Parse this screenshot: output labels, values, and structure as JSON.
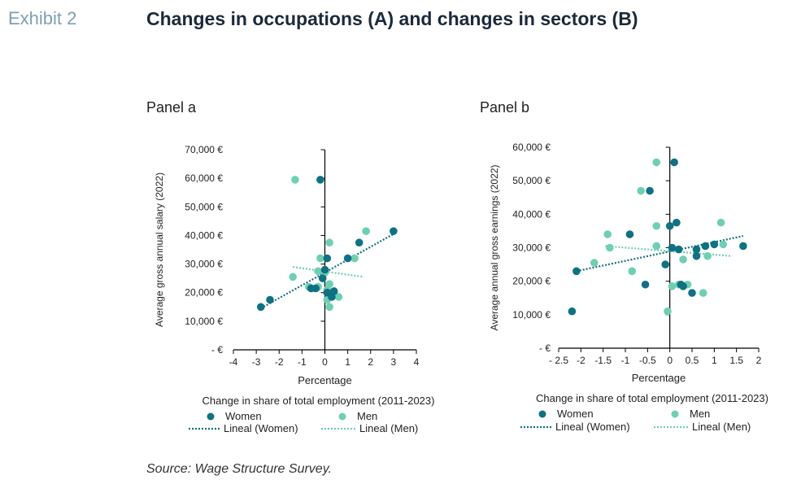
{
  "header": {
    "exhibit": "Exhibit 2",
    "title": "Changes in occupations (A) and changes in sectors (B)"
  },
  "source": "Source: Wage Structure Survey.",
  "colors": {
    "women": "#0f7182",
    "men": "#6fcfb3",
    "axis": "#000000"
  },
  "chart_data": [
    {
      "type": "scatter",
      "panel": "Panel a",
      "xlabel": "Percentage",
      "ylabel": "Average gross annual salary (2022)",
      "subtitle": "Change in share of total employment (2011-2023)",
      "xlim": [
        -4,
        4
      ],
      "ylim": [
        0,
        70000
      ],
      "xticks": [
        "-4",
        "-3",
        "-2",
        "-1",
        "0",
        "1",
        "2",
        "3",
        "4"
      ],
      "yticks": [
        "- €",
        "10,000 €",
        "20,000 €",
        "30,000 €",
        "40,000 €",
        "50,000 €",
        "60,000 €",
        "70,000 €"
      ],
      "legend": [
        "Women",
        "Men",
        "Lineal (Women)",
        "Lineal (Men)"
      ],
      "series": [
        {
          "name": "Women",
          "points": [
            [
              -2.8,
              15000
            ],
            [
              -2.4,
              17500
            ],
            [
              -0.2,
              59500
            ],
            [
              0.1,
              32000
            ],
            [
              1.0,
              32000
            ],
            [
              1.5,
              37500
            ],
            [
              3.0,
              41500
            ],
            [
              -0.1,
              25000
            ],
            [
              0.0,
              28000
            ],
            [
              0.1,
              20000
            ],
            [
              0.3,
              18500
            ],
            [
              0.4,
              20500
            ],
            [
              -0.6,
              21500
            ],
            [
              -0.4,
              21500
            ]
          ]
        },
        {
          "name": "Men",
          "points": [
            [
              -1.3,
              59500
            ],
            [
              -1.4,
              25500
            ],
            [
              -0.2,
              32000
            ],
            [
              0.2,
              37500
            ],
            [
              1.3,
              32000
            ],
            [
              1.8,
              41500
            ],
            [
              -0.3,
              27500
            ],
            [
              0.0,
              27000
            ],
            [
              0.2,
              23000
            ],
            [
              0.1,
              21000
            ],
            [
              0.2,
              15000
            ],
            [
              0.1,
              17500
            ],
            [
              0.6,
              18500
            ],
            [
              -0.7,
              22000
            ],
            [
              -0.3,
              22000
            ]
          ]
        }
      ],
      "trend": {
        "Women": [
          [
            -2.8,
            14500
          ],
          [
            3.0,
            40500
          ]
        ],
        "Men": [
          [
            -1.4,
            29000
          ],
          [
            1.7,
            25500
          ]
        ]
      }
    },
    {
      "type": "scatter",
      "panel": "Panel b",
      "xlabel": "Percentage",
      "ylabel": "Average annual gross earnings (2022)",
      "subtitle": "Change in share of total employment (2011-2023)",
      "xlim": [
        -2.5,
        2
      ],
      "ylim": [
        0,
        60000
      ],
      "xticks": [
        "- 2.5",
        "-2",
        "-1.5",
        "-1",
        "-0.5",
        "0",
        "0.5",
        "1",
        "1.5",
        "2"
      ],
      "yticks": [
        "- €",
        "10,000 €",
        "20,000 €",
        "30,000 €",
        "40,000 €",
        "50,000 €",
        "60,000 €"
      ],
      "legend": [
        "Women",
        "Men",
        "Lineal (Women)",
        "Lineal (Men)"
      ],
      "series": [
        {
          "name": "Women",
          "points": [
            [
              -2.2,
              11000
            ],
            [
              -2.1,
              23000
            ],
            [
              -0.9,
              34000
            ],
            [
              -0.55,
              19000
            ],
            [
              -0.45,
              47000
            ],
            [
              0.0,
              36500
            ],
            [
              0.05,
              30000
            ],
            [
              0.1,
              55500
            ],
            [
              0.15,
              37500
            ],
            [
              0.2,
              29500
            ],
            [
              0.25,
              19000
            ],
            [
              0.3,
              18500
            ],
            [
              0.5,
              16500
            ],
            [
              0.6,
              27500
            ],
            [
              0.6,
              29500
            ],
            [
              0.8,
              30500
            ],
            [
              1.0,
              31000
            ],
            [
              1.65,
              30500
            ],
            [
              -0.1,
              25000
            ]
          ]
        },
        {
          "name": "Men",
          "points": [
            [
              -1.7,
              25500
            ],
            [
              -1.4,
              34000
            ],
            [
              -1.35,
              30000
            ],
            [
              -0.85,
              23000
            ],
            [
              -0.65,
              47000
            ],
            [
              -0.3,
              55500
            ],
            [
              -0.3,
              36500
            ],
            [
              -0.3,
              30500
            ],
            [
              -0.05,
              11000
            ],
            [
              0.05,
              18500
            ],
            [
              0.2,
              19000
            ],
            [
              0.3,
              26500
            ],
            [
              0.4,
              19000
            ],
            [
              0.75,
              16500
            ],
            [
              0.85,
              27500
            ],
            [
              1.15,
              37500
            ],
            [
              1.2,
              31000
            ]
          ]
        }
      ],
      "trend": {
        "Women": [
          [
            -2.1,
            23000
          ],
          [
            1.65,
            33500
          ]
        ],
        "Men": [
          [
            -1.45,
            30500
          ],
          [
            1.4,
            27500
          ]
        ]
      }
    }
  ]
}
